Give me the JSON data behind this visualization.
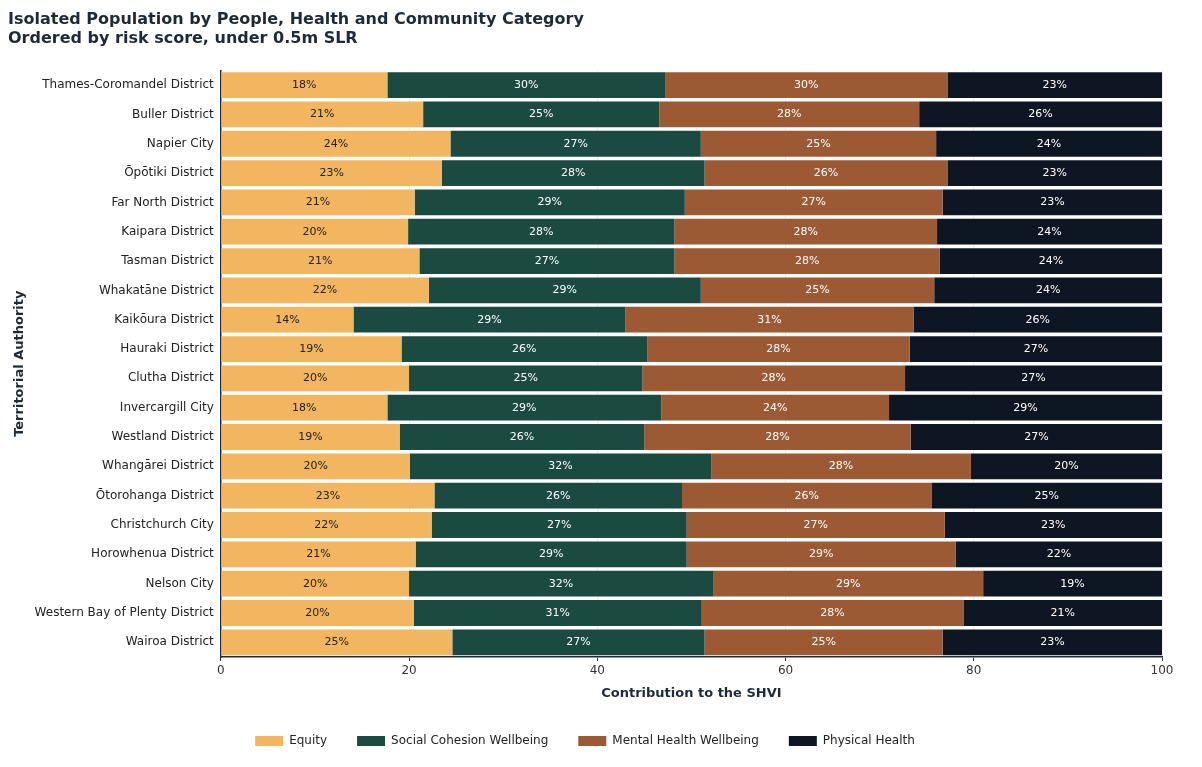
{
  "chart_data": {
    "type": "bar",
    "orientation": "horizontal",
    "stacked": true,
    "title": "Isolated Population by People, Health and Community Category\nOrdered by risk score, under 0.5m SLR",
    "xlabel": "Contribution to the SHVI",
    "ylabel": "Territorial Authority",
    "categories": [
      "Thames-Coromandel District",
      "Buller District",
      "Napier City",
      "Ōpōtiki District",
      "Far North District",
      "Kaipara District",
      "Tasman District",
      "Whakatāne District",
      "Kaikōura District",
      "Hauraki District",
      "Clutha District",
      "Invercargill City",
      "Westland District",
      "Whangārei District",
      "Ōtorohanga District",
      "Christchurch City",
      "Horowhenua District",
      "Nelson City",
      "Western Bay of Plenty District",
      "Wairoa District"
    ],
    "series": [
      {
        "name": "Equity",
        "color": "#f2b560",
        "values": [
          17.7,
          21.5,
          24.4,
          23.5,
          20.6,
          19.9,
          21.1,
          22.1,
          14.1,
          19.2,
          20.0,
          17.7,
          19.0,
          20.1,
          22.7,
          22.4,
          20.7,
          20.0,
          20.5,
          24.6
        ],
        "value_labels": [
          "18%",
          "21%",
          "24%",
          "23%",
          "21%",
          "20%",
          "21%",
          "22%",
          "14%",
          "19%",
          "20%",
          "18%",
          "19%",
          "20%",
          "23%",
          "22%",
          "21%",
          "20%",
          "20%",
          "25%"
        ]
      },
      {
        "name": "Social Cohesion Wellbeing",
        "color": "#1a4a40",
        "values": [
          29.5,
          25.1,
          26.6,
          27.9,
          28.7,
          28.3,
          27.1,
          28.9,
          28.9,
          26.1,
          24.8,
          29.1,
          26.0,
          32.0,
          26.3,
          27.1,
          28.8,
          32.3,
          30.6,
          26.8
        ],
        "value_labels": [
          "30%",
          "25%",
          "27%",
          "28%",
          "29%",
          "28%",
          "27%",
          "29%",
          "29%",
          "26%",
          "25%",
          "29%",
          "26%",
          "32%",
          "26%",
          "27%",
          "29%",
          "32%",
          "31%",
          "27%"
        ]
      },
      {
        "name": "Mental Health Wellbeing",
        "color": "#9c5a34",
        "values": [
          30.0,
          27.6,
          25.0,
          25.8,
          27.4,
          27.9,
          28.2,
          24.8,
          30.6,
          27.9,
          27.9,
          24.2,
          28.3,
          27.6,
          26.5,
          27.4,
          28.6,
          28.7,
          27.8,
          25.3
        ],
        "value_labels": [
          "30%",
          "28%",
          "25%",
          "26%",
          "27%",
          "28%",
          "28%",
          "25%",
          "31%",
          "28%",
          "28%",
          "24%",
          "28%",
          "28%",
          "26%",
          "27%",
          "29%",
          "29%",
          "28%",
          "25%"
        ]
      },
      {
        "name": "Physical Health",
        "color": "#0f1623",
        "values": [
          22.8,
          25.8,
          24.0,
          22.8,
          23.3,
          23.9,
          23.6,
          24.2,
          26.4,
          26.8,
          27.3,
          29.0,
          26.7,
          20.3,
          24.5,
          23.1,
          21.9,
          19.0,
          21.1,
          23.3
        ],
        "value_labels": [
          "23%",
          "26%",
          "24%",
          "23%",
          "23%",
          "24%",
          "24%",
          "24%",
          "26%",
          "27%",
          "27%",
          "29%",
          "27%",
          "20%",
          "25%",
          "23%",
          "22%",
          "19%",
          "21%",
          "23%"
        ]
      }
    ],
    "xlim": [
      0,
      100
    ],
    "xticks": [
      0,
      20,
      40,
      60,
      80,
      100
    ],
    "grid": "x",
    "legend": "bottom"
  }
}
